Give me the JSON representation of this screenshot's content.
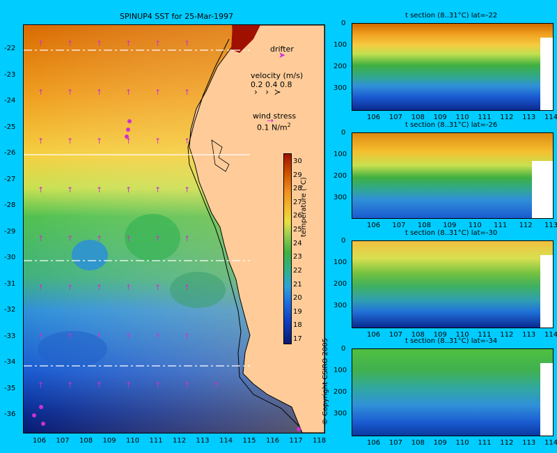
{
  "map": {
    "title": "SPINUP4 SST for 25-Mar-1997",
    "lat_labels": [
      "-22",
      "-23",
      "-24",
      "-25",
      "-26",
      "-27",
      "-28",
      "-29",
      "-30",
      "-31",
      "-32",
      "-33",
      "-34",
      "-35",
      "-36"
    ],
    "lon_labels": [
      "106",
      "107",
      "108",
      "109",
      "110",
      "111",
      "112",
      "113",
      "114",
      "115",
      "116",
      "117",
      "118"
    ],
    "drifter_label": "drifter",
    "velocity_title": "velocity (m/s)",
    "velocity_scale": "0.2 0.4 0.8",
    "wind_title": "wind stress",
    "wind_scale": "0.1 N/m",
    "wind_exp": "2",
    "colorbar_label": "temperature (°C)",
    "colorbar_ticks": [
      "30",
      "29",
      "28",
      "27",
      "26",
      "25",
      "24",
      "23",
      "22",
      "21",
      "20",
      "19",
      "18",
      "17"
    ],
    "colorbar_range": [
      16,
      31
    ],
    "colors": {
      "background": "#00ccff",
      "land": "#ffcc99",
      "arrow": "#cc33cc",
      "section_line": "#ffffff"
    }
  },
  "sections": [
    {
      "title": "t section (8..31°C) lat=-22",
      "depth_ticks": [
        "0",
        "100",
        "200",
        "300"
      ],
      "lon_ticks": [
        "106",
        "107",
        "108",
        "109",
        "110",
        "111",
        "112",
        "113",
        "114"
      ]
    },
    {
      "title": "t section (8..31°C) lat=-26",
      "depth_ticks": [
        "0",
        "100",
        "200",
        "300"
      ],
      "lon_ticks": [
        "106",
        "107",
        "108",
        "109",
        "110",
        "111",
        "112",
        "113"
      ]
    },
    {
      "title": "t section (8..31°C) lat=-30",
      "depth_ticks": [
        "0",
        "100",
        "200",
        "300"
      ],
      "lon_ticks": [
        "106",
        "107",
        "108",
        "109",
        "110",
        "111",
        "112",
        "113",
        "114"
      ]
    },
    {
      "title": "t section (8..31°C) lat=-34",
      "depth_ticks": [
        "0",
        "100",
        "200",
        "300"
      ],
      "lon_ticks": [
        "106",
        "107",
        "108",
        "109",
        "110",
        "111",
        "112",
        "113",
        "114"
      ]
    }
  ],
  "copyright": "© Copyright CSIRO 2005"
}
